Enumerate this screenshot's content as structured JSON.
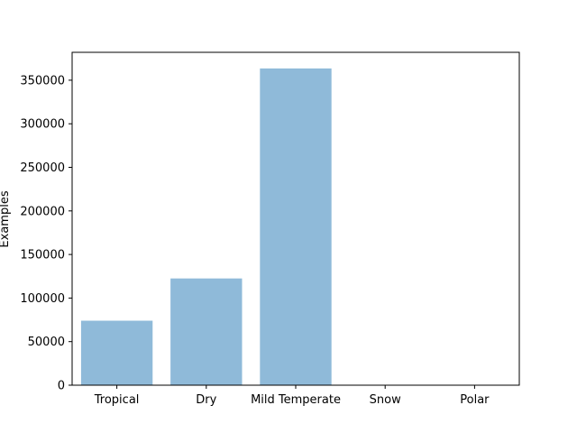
{
  "chart_data": {
    "type": "bar",
    "title": "",
    "xlabel": "",
    "ylabel": "Examples",
    "categories": [
      "Tropical",
      "Dry",
      "Mild Temperate",
      "Snow",
      "Polar"
    ],
    "values": [
      74000,
      122500,
      363500,
      0,
      0
    ],
    "ylim": [
      0,
      382000
    ],
    "yticks": [
      0,
      50000,
      100000,
      150000,
      200000,
      250000,
      300000,
      350000
    ],
    "ytick_labels": [
      "0",
      "50000",
      "100000",
      "150000",
      "200000",
      "250000",
      "300000",
      "350000"
    ],
    "bar_color": "#8fbad9",
    "grid": false,
    "legend": "none"
  }
}
